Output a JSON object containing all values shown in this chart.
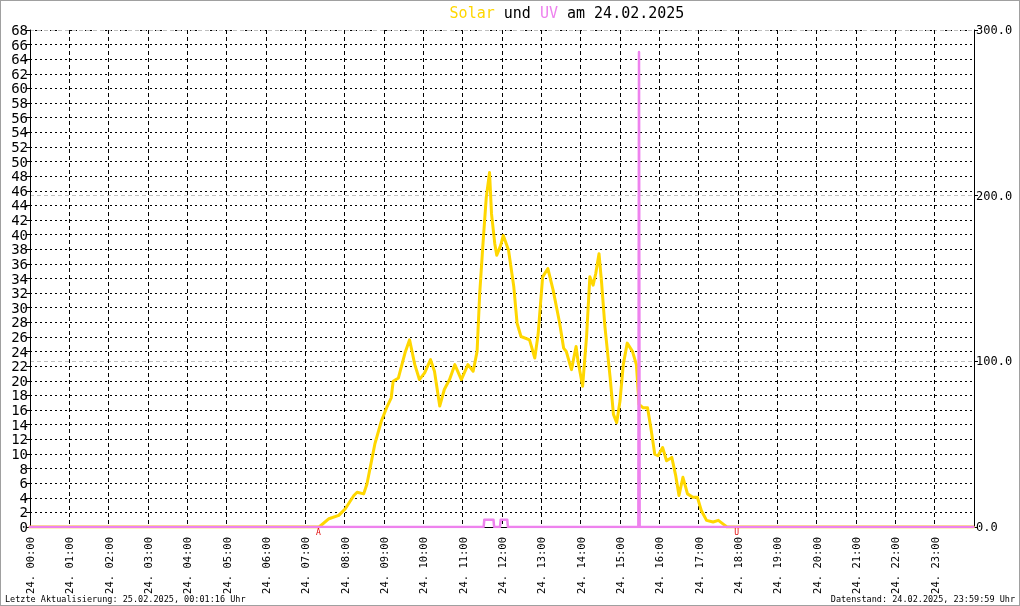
{
  "chart_data": {
    "type": "line",
    "title": "Solar und UV am 24.02.2025",
    "annotations": [
      {
        "text": "A",
        "x": "2025-02-24T07:20",
        "y": 0
      },
      {
        "text": "U",
        "x": "2025-02-24T17:58",
        "y": 0
      },
      "Letzte Aktualisierung: 25.02.2025, 00:01:16 Uhr",
      "Datenstand: 24.02.2025, 23:59:59 Uhr"
    ],
    "xlim": [
      "2025-02-24T00:00",
      "2025-02-25T00:00"
    ],
    "xticks": [
      {
        "value": "2025-02-24T00:00",
        "label": "24. 00:00"
      },
      {
        "value": "2025-02-24T01:00",
        "label": "24. 01:00"
      },
      {
        "value": "2025-02-24T02:00",
        "label": "24. 02:00"
      },
      {
        "value": "2025-02-24T03:00",
        "label": "24. 03:00"
      },
      {
        "value": "2025-02-24T04:00",
        "label": "24. 04:00"
      },
      {
        "value": "2025-02-24T05:00",
        "label": "24. 05:00"
      },
      {
        "value": "2025-02-24T06:00",
        "label": "24. 06:00"
      },
      {
        "value": "2025-02-24T07:00",
        "label": "24. 07:00"
      },
      {
        "value": "2025-02-24T08:00",
        "label": "24. 08:00"
      },
      {
        "value": "2025-02-24T09:00",
        "label": "24. 09:00"
      },
      {
        "value": "2025-02-24T10:00",
        "label": "24. 10:00"
      },
      {
        "value": "2025-02-24T11:00",
        "label": "24. 11:00"
      },
      {
        "value": "2025-02-24T12:00",
        "label": "24. 12:00"
      },
      {
        "value": "2025-02-24T13:00",
        "label": "24. 13:00"
      },
      {
        "value": "2025-02-24T14:00",
        "label": "24. 14:00"
      },
      {
        "value": "2025-02-24T15:00",
        "label": "24. 15:00"
      },
      {
        "value": "2025-02-24T16:00",
        "label": "24. 16:00"
      },
      {
        "value": "2025-02-24T17:00",
        "label": "24. 17:00"
      },
      {
        "value": "2025-02-24T18:00",
        "label": "24. 18:00"
      },
      {
        "value": "2025-02-24T19:00",
        "label": "24. 19:00"
      },
      {
        "value": "2025-02-24T20:00",
        "label": "24. 20:00"
      },
      {
        "value": "2025-02-24T21:00",
        "label": "24. 21:00"
      },
      {
        "value": "2025-02-24T22:00",
        "label": "24. 22:00"
      },
      {
        "value": "2025-02-24T23:00",
        "label": "24. 23:00"
      }
    ],
    "ylim": [
      0,
      68
    ],
    "yticks": [
      0,
      2,
      4,
      6,
      8,
      10,
      12,
      14,
      16,
      18,
      20,
      22,
      24,
      26,
      28,
      30,
      32,
      34,
      36,
      38,
      40,
      42,
      44,
      46,
      48,
      50,
      52,
      54,
      56,
      58,
      60,
      62,
      64,
      66,
      68
    ],
    "y2lim": [
      0,
      300
    ],
    "y2ticks": [
      {
        "value": 0,
        "label": "0.0"
      },
      {
        "value": 100,
        "label": "100.0"
      },
      {
        "value": 200,
        "label": "200.0"
      },
      {
        "value": 300,
        "label": "300.0"
      }
    ],
    "grid": true,
    "legend": false,
    "marker": "none",
    "line_style": "solid",
    "series": [
      {
        "color": "#ffd700",
        "axis": "y2",
        "x": [
          "2025-02-24T00:00",
          "2025-02-24T07:21",
          "2025-02-24T07:36",
          "2025-02-24T07:51",
          "2025-02-24T08:01",
          "2025-02-24T08:14",
          "2025-02-24T08:19",
          "2025-02-24T08:29",
          "2025-02-24T08:34",
          "2025-02-24T08:39",
          "2025-02-24T08:46",
          "2025-02-24T08:56",
          "2025-02-24T09:04",
          "2025-02-24T09:11",
          "2025-02-24T09:14",
          "2025-02-24T09:22",
          "2025-02-24T09:26",
          "2025-02-24T09:32",
          "2025-02-24T09:39",
          "2025-02-24T09:47",
          "2025-02-24T09:54",
          "2025-02-24T10:02",
          "2025-02-24T10:11",
          "2025-02-24T10:17",
          "2025-02-24T10:25",
          "2025-02-24T10:32",
          "2025-02-24T10:40",
          "2025-02-24T10:48",
          "2025-02-24T10:58",
          "2025-02-24T11:08",
          "2025-02-24T11:16",
          "2025-02-24T11:22",
          "2025-02-24T11:26",
          "2025-02-24T11:31",
          "2025-02-24T11:36",
          "2025-02-24T11:41",
          "2025-02-24T11:44",
          "2025-02-24T11:49",
          "2025-02-24T11:52",
          "2025-02-24T11:58",
          "2025-02-24T12:02",
          "2025-02-24T12:10",
          "2025-02-24T12:18",
          "2025-02-24T12:23",
          "2025-02-24T12:29",
          "2025-02-24T12:42",
          "2025-02-24T12:50",
          "2025-02-24T12:55",
          "2025-02-24T13:02",
          "2025-02-24T13:10",
          "2025-02-24T13:18",
          "2025-02-24T13:28",
          "2025-02-24T13:34",
          "2025-02-24T13:38",
          "2025-02-24T13:46",
          "2025-02-24T13:53",
          "2025-02-24T13:56",
          "2025-02-24T14:03",
          "2025-02-24T14:09",
          "2025-02-24T14:14",
          "2025-02-24T14:19",
          "2025-02-24T14:23",
          "2025-02-24T14:28",
          "2025-02-24T14:32",
          "2025-02-24T14:37",
          "2025-02-24T14:45",
          "2025-02-24T14:50",
          "2025-02-24T14:55",
          "2025-02-24T15:00",
          "2025-02-24T15:05",
          "2025-02-24T15:11",
          "2025-02-24T15:19",
          "2025-02-24T15:25",
          "2025-02-24T15:29",
          "2025-02-24T15:35",
          "2025-02-24T15:42",
          "2025-02-24T15:47",
          "2025-02-24T15:53",
          "2025-02-24T15:58",
          "2025-02-24T16:05",
          "2025-02-24T16:11",
          "2025-02-24T16:19",
          "2025-02-24T16:25",
          "2025-02-24T16:30",
          "2025-02-24T16:36",
          "2025-02-24T16:43",
          "2025-02-24T16:51",
          "2025-02-24T16:58",
          "2025-02-24T17:04",
          "2025-02-24T17:12",
          "2025-02-24T17:22",
          "2025-02-24T17:30",
          "2025-02-24T17:40",
          "2025-02-24T17:43",
          "2025-02-24T23:59"
        ],
        "values": [
          0,
          0,
          5,
          7,
          11,
          19,
          21,
          20,
          26,
          36,
          50,
          64,
          72,
          78,
          88,
          90,
          96,
          105,
          113,
          98,
          89,
          93,
          101,
          94,
          73,
          83,
          89,
          98,
          89,
          98,
          94,
          106,
          141,
          171,
          199,
          214,
          189,
          171,
          164,
          170,
          176,
          167,
          145,
          123,
          115,
          113,
          102,
          116,
          151,
          156,
          143,
          123,
          108,
          106,
          95,
          109,
          100,
          85,
          115,
          151,
          146,
          153,
          165,
          147,
          121,
          90,
          68,
          63,
          76,
          98,
          111,
          106,
          98,
          74,
          72,
          72,
          60,
          44,
          43,
          48,
          40,
          42,
          31,
          19,
          30,
          20,
          18,
          18,
          10,
          4,
          3,
          4,
          1,
          0,
          0
        ]
      },
      {
        "color": "#ee82ee",
        "x": [
          "2025-02-24T00:00",
          "2025-02-24T11:32",
          "2025-02-24T11:33",
          "2025-02-24T11:47",
          "2025-02-24T11:48",
          "2025-02-24T11:57",
          "2025-02-24T11:58",
          "2025-02-24T12:08",
          "2025-02-24T12:09",
          "2025-02-24T15:28",
          "2025-02-24T15:29",
          "2025-02-24T15:30",
          "2025-02-24T23:59"
        ],
        "values": [
          0,
          0,
          1,
          1,
          0,
          0,
          1,
          1,
          0,
          0,
          65,
          0,
          0
        ]
      }
    ]
  }
}
